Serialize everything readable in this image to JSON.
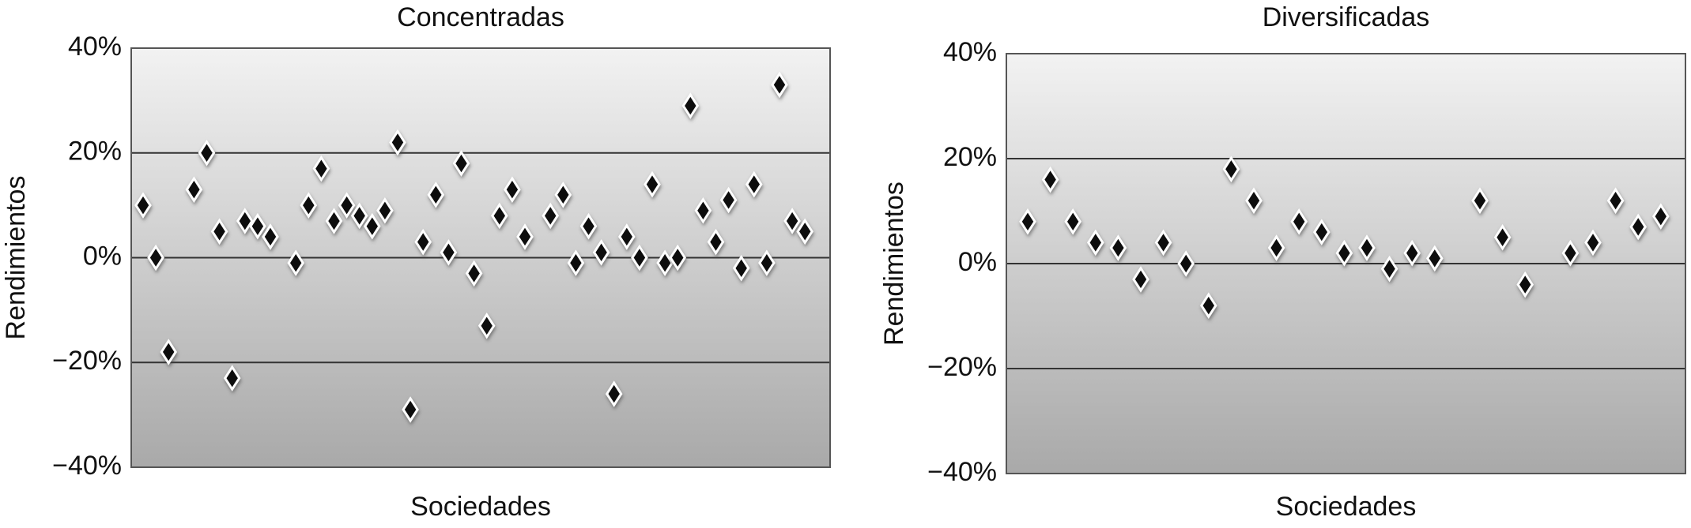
{
  "chart_data": [
    {
      "type": "scatter",
      "title": "Concentradas",
      "xlabel": "Sociedades",
      "ylabel": "Rendimientos",
      "values": [
        10,
        0,
        -18,
        null,
        13,
        20,
        5,
        -23,
        7,
        6,
        4,
        null,
        -1,
        10,
        17,
        7,
        10,
        8,
        6,
        9,
        22,
        -29,
        3,
        12,
        1,
        18,
        -3,
        -13,
        8,
        13,
        4,
        null,
        8,
        12,
        -1,
        6,
        1,
        -26,
        4,
        0,
        14,
        -1,
        0,
        29,
        9,
        3,
        11,
        -2,
        14,
        -1,
        33,
        7,
        5
      ],
      "color": "#111111",
      "ylim": [
        -40,
        40
      ],
      "yticks": [
        {
          "value": -40,
          "label": "−40%"
        },
        {
          "value": -20,
          "label": "−20%"
        },
        {
          "value": 0,
          "label": "0%"
        },
        {
          "value": 20,
          "label": "20%"
        },
        {
          "value": 40,
          "label": "40%"
        }
      ],
      "grid": true
    },
    {
      "type": "scatter",
      "title": "Diversificadas",
      "xlabel": "Sociedades",
      "ylabel": "Rendimientos",
      "values": [
        8,
        16,
        8,
        4,
        3,
        -3,
        4,
        0,
        -8,
        18,
        12,
        3,
        8,
        6,
        2,
        3,
        -1,
        2,
        1,
        null,
        12,
        5,
        -4,
        null,
        2,
        4,
        12,
        7,
        9
      ],
      "color": "#111111",
      "ylim": [
        -40,
        40
      ],
      "yticks": [
        {
          "value": -40,
          "label": "−40%"
        },
        {
          "value": -20,
          "label": "−20%"
        },
        {
          "value": 0,
          "label": "0%"
        },
        {
          "value": 20,
          "label": "20%"
        },
        {
          "value": 40,
          "label": "40%"
        }
      ],
      "grid": true
    }
  ]
}
